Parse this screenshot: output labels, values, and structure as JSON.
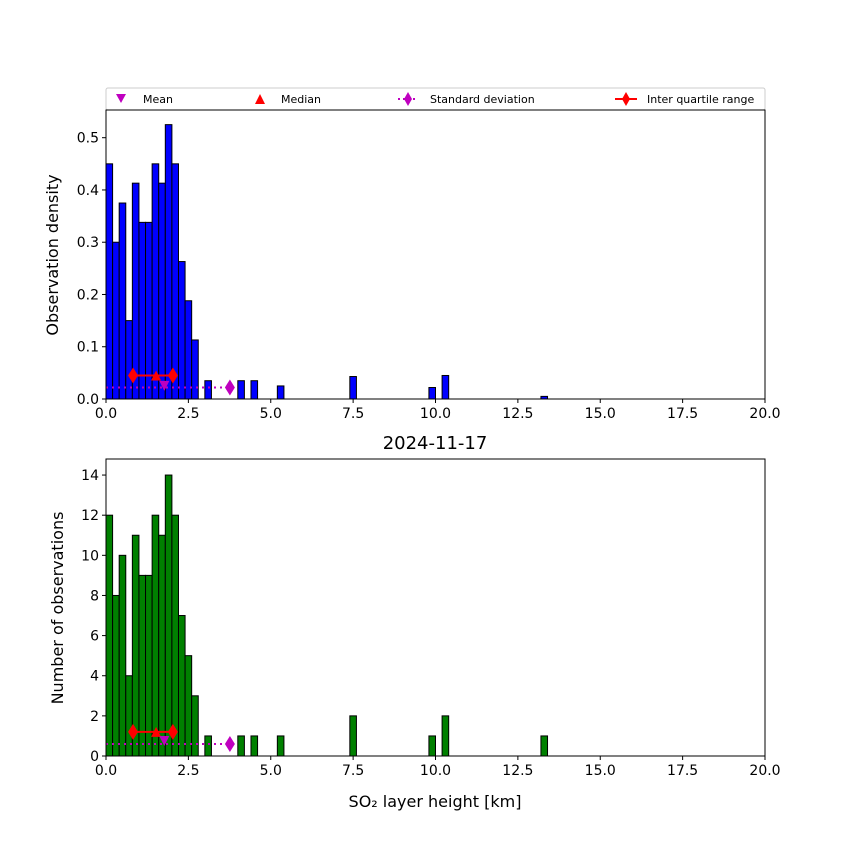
{
  "chart_data": [
    {
      "type": "bar",
      "title": "",
      "xlabel": "",
      "ylabel": "Observation density",
      "xlim": [
        0,
        20
      ],
      "ylim": [
        0,
        0.553
      ],
      "xticks": [
        "0.0",
        "2.5",
        "5.0",
        "7.5",
        "10.0",
        "12.5",
        "15.0",
        "17.5",
        "20.0"
      ],
      "yticks": [
        "0.0",
        "0.1",
        "0.2",
        "0.3",
        "0.4",
        "0.5"
      ],
      "yticks_values": [
        0,
        0.1,
        0.2,
        0.3,
        0.4,
        0.5
      ],
      "bin_width": 0.2,
      "color": "#0000ff",
      "bin_starts": [
        0,
        0.2,
        0.4,
        0.6,
        0.8,
        1.0,
        1.2,
        1.4,
        1.6,
        1.8,
        2.0,
        2.2,
        2.4,
        2.6,
        3.0,
        4.0,
        4.4,
        5.2,
        7.4,
        9.8,
        10.2,
        13.2
      ],
      "values": [
        0.45,
        0.3,
        0.375,
        0.15,
        0.413,
        0.338,
        0.338,
        0.45,
        0.413,
        0.525,
        0.45,
        0.263,
        0.188,
        0.113,
        0.035,
        0.035,
        0.035,
        0.025,
        0.043,
        0.022,
        0.045,
        0.005
      ],
      "stats": {
        "mean": 1.77,
        "median": 1.52,
        "iqr": [
          0.82,
          2.03
        ],
        "std_end": 3.76,
        "stat_y": 0.045,
        "mean_y": 0.025,
        "std_y": 0.022
      }
    },
    {
      "type": "bar",
      "title": "2024-11-17",
      "xlabel": "SO₂ layer height [km]",
      "ylabel": "Number of observations",
      "xlim": [
        0,
        20
      ],
      "ylim": [
        0,
        14.8
      ],
      "xticks": [
        "0.0",
        "2.5",
        "5.0",
        "7.5",
        "10.0",
        "12.5",
        "15.0",
        "17.5",
        "20.0"
      ],
      "yticks": [
        "0",
        "2",
        "4",
        "6",
        "8",
        "10",
        "12",
        "14"
      ],
      "yticks_values": [
        0,
        2,
        4,
        6,
        8,
        10,
        12,
        14
      ],
      "bin_width": 0.2,
      "color": "#008000",
      "bin_starts": [
        0,
        0.2,
        0.4,
        0.6,
        0.8,
        1.0,
        1.2,
        1.4,
        1.6,
        1.8,
        2.0,
        2.2,
        2.4,
        2.6,
        3.0,
        4.0,
        4.4,
        5.2,
        7.4,
        9.8,
        10.2,
        13.2
      ],
      "values": [
        12,
        8,
        10,
        4,
        11,
        9,
        9,
        12,
        11,
        14,
        12,
        7,
        5,
        3,
        1,
        1,
        1,
        1,
        2,
        1,
        2,
        1
      ],
      "stats": {
        "mean": 1.77,
        "median": 1.52,
        "iqr": [
          0.82,
          2.03
        ],
        "std_end": 3.76,
        "stat_y": 1.2,
        "mean_y": 0.75,
        "std_y": 0.6
      }
    }
  ],
  "legend": {
    "placement": "top",
    "items": [
      "Mean",
      "Median",
      "Standard deviation",
      "Inter quartile range"
    ]
  },
  "colors": {
    "mean": "#bf00bf",
    "median": "#ff0000",
    "std": "#bf00bf",
    "iqr": "#ff0000"
  }
}
